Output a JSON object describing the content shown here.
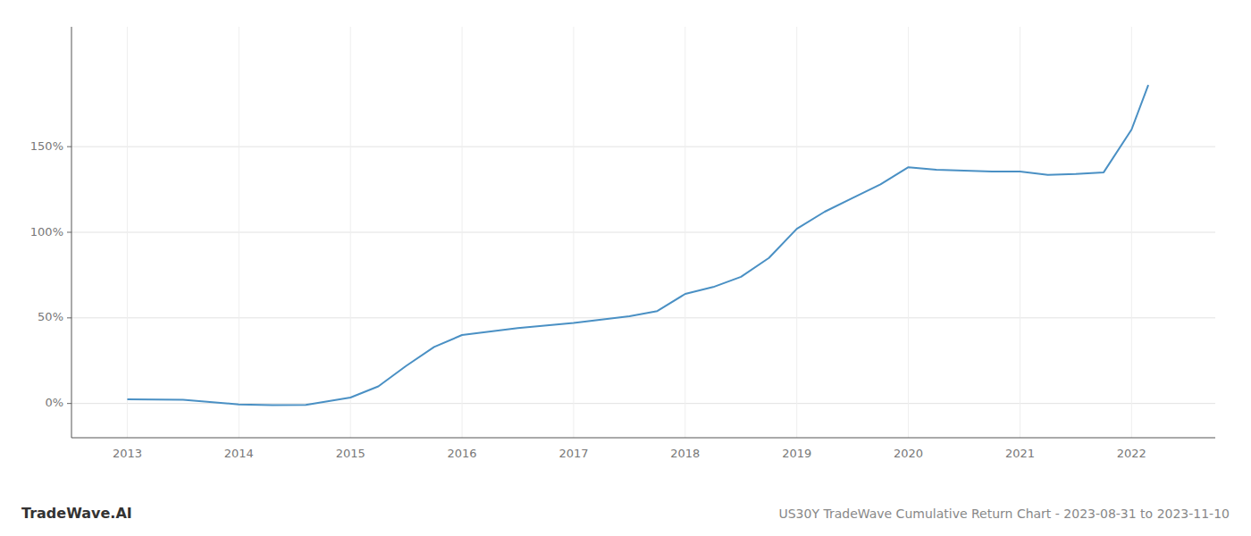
{
  "chart_data": {
    "type": "line",
    "title": "US30Y TradeWave Cumulative Return Chart - 2023-08-31 to 2023-11-10",
    "annotations": [
      "TradeWave.AI"
    ],
    "color": "#4a90c4",
    "x": [
      2013.0,
      2013.5,
      2014.0,
      2014.3,
      2014.6,
      2015.0,
      2015.25,
      2015.5,
      2015.75,
      2016.0,
      2016.5,
      2017.0,
      2017.25,
      2017.5,
      2017.75,
      2018.0,
      2018.25,
      2018.5,
      2018.75,
      2019.0,
      2019.25,
      2019.5,
      2019.75,
      2020.0,
      2020.25,
      2020.5,
      2020.75,
      2021.0,
      2021.25,
      2021.5,
      2021.75,
      2022.0,
      2022.15
    ],
    "values": [
      2.5,
      2.2,
      -0.5,
      -1.0,
      -0.8,
      3.5,
      10.0,
      22.0,
      33.0,
      40.0,
      44.0,
      47.0,
      49.0,
      51.0,
      54.0,
      64.0,
      68.0,
      74.0,
      85.0,
      102.0,
      112.0,
      120.0,
      128.0,
      138.0,
      136.5,
      136.0,
      135.5,
      135.5,
      133.5,
      134.0,
      135.0,
      160.0,
      186.0
    ],
    "xlim": [
      2012.5,
      2022.75
    ],
    "ylim": [
      -20,
      220
    ],
    "xticks": [
      2013,
      2014,
      2015,
      2016,
      2017,
      2018,
      2019,
      2020,
      2021,
      2022
    ],
    "yticks": [
      {
        "value": 0,
        "label": "0%"
      },
      {
        "value": 50,
        "label": "50%"
      },
      {
        "value": 100,
        "label": "100%"
      },
      {
        "value": 150,
        "label": "150%"
      }
    ],
    "grid": true
  }
}
